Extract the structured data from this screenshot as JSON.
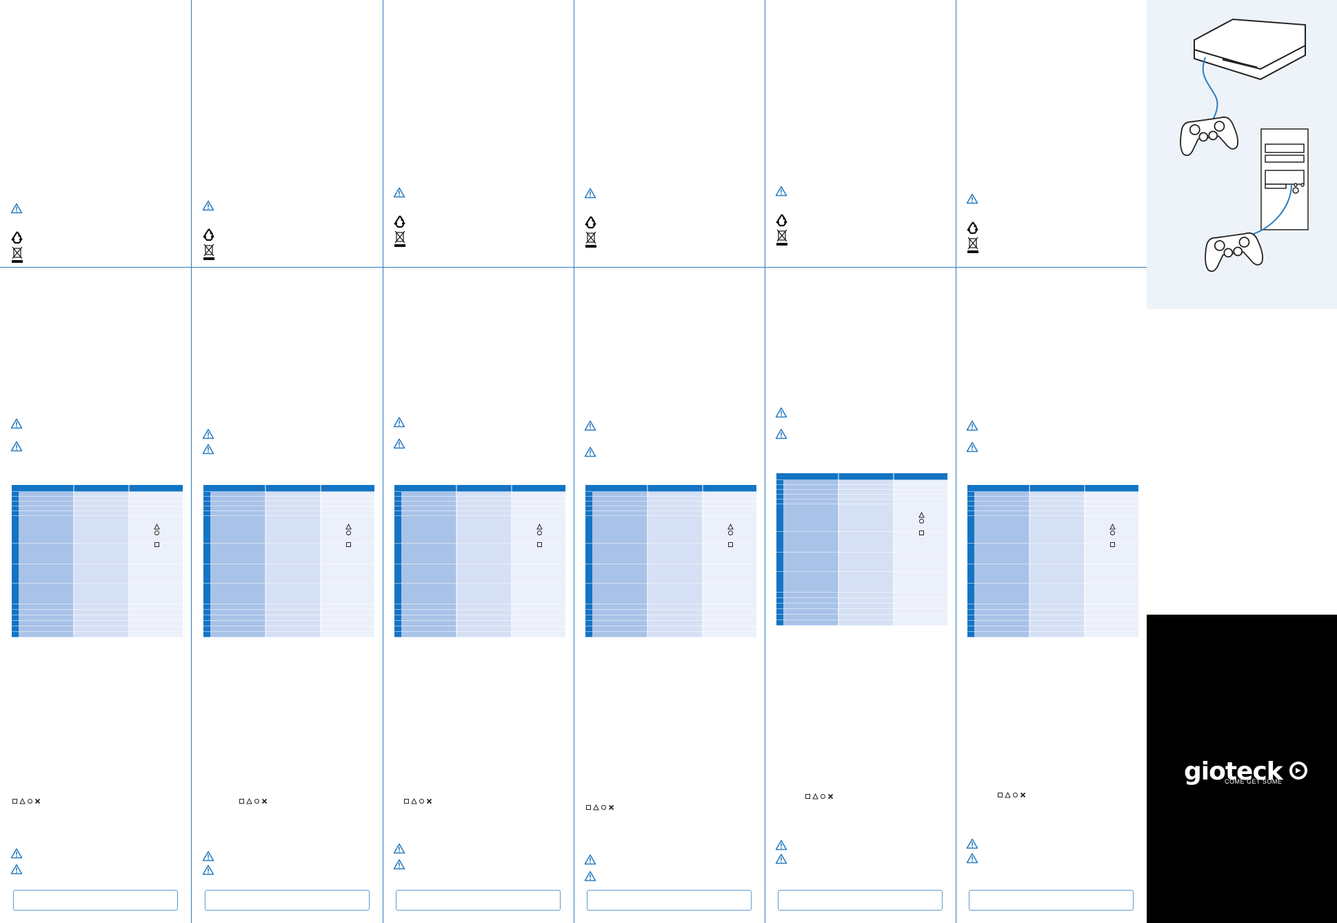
{
  "brand": {
    "logo_text": "gioteck",
    "tagline": "COME GET SOME"
  },
  "colors": {
    "rule": "#2b7cc0",
    "table_header": "#1474c4",
    "table_dark": "#a9c2e8",
    "table_mid": "#d5e0f4",
    "table_light": "#ebf0fa",
    "black_panel": "#000000",
    "illus_bg": "#eef3fa"
  },
  "icons": {
    "warning": "warning-icon",
    "recycle": "recycle-icon",
    "weee": "crossed-bin-icon",
    "square": "square-button-icon",
    "triangle": "triangle-button-icon",
    "circle": "circle-button-icon",
    "cross": "cross-button-icon"
  },
  "face_buttons": {
    "square": "□",
    "triangle": "△",
    "circle": "○",
    "cross": "X"
  }
}
